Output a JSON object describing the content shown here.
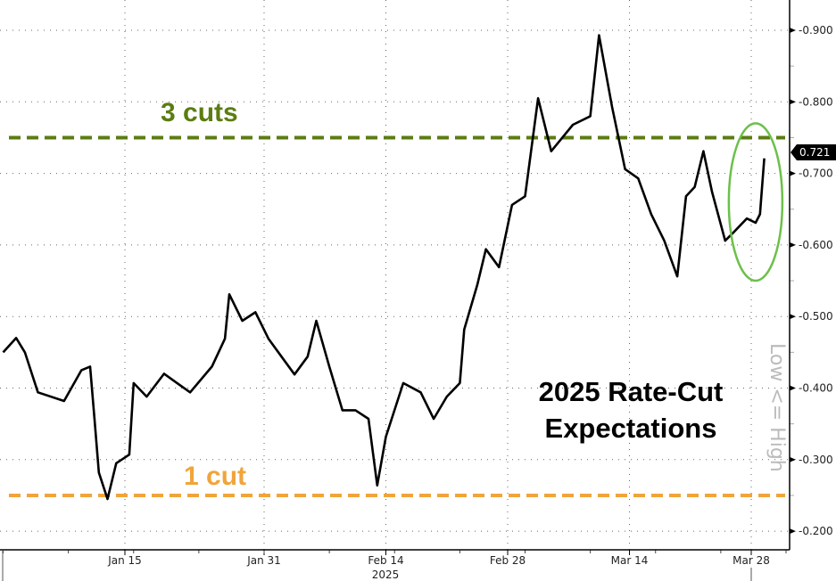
{
  "chart_data": {
    "type": "line",
    "title": "2025 Rate-Cut Expectations",
    "title_lines": [
      "2025 Rate-Cut",
      "Expectations"
    ],
    "ylabel": "Low <= High",
    "xlabel": "2025",
    "ylim": [
      0.18,
      0.93
    ],
    "xlim": [
      "2025-01-01",
      "2025-04-01"
    ],
    "y_axis_side": "right",
    "y_ticks": [
      0.2,
      0.3,
      0.4,
      0.5,
      0.6,
      0.7,
      0.8,
      0.9
    ],
    "y_tick_labels": [
      "0.200",
      "0.300",
      "0.400",
      "0.500",
      "0.600",
      "0.700",
      "0.800",
      "0.900"
    ],
    "x_ticks": [
      "2025-01-15",
      "2025-01-31",
      "2025-02-14",
      "2025-02-28",
      "2025-03-14",
      "2025-03-28"
    ],
    "x_tick_labels": [
      "Jan 15",
      "Jan 31",
      "Feb 14",
      "Feb 28",
      "Mar 14",
      "Mar 28"
    ],
    "grid": true,
    "last_value_label": "0.721",
    "line_color": "#000000",
    "series": [
      {
        "x": [
          "2025-01-01T00:00",
          "2025-01-02T12:00",
          "2025-01-03T12:00",
          "2025-01-05T00:00",
          "2025-01-08T00:00",
          "2025-01-10T00:00",
          "2025-01-11T00:00",
          "2025-01-11T12:00",
          "2025-01-12T00:00",
          "2025-01-13T00:00",
          "2025-01-14T00:00",
          "2025-01-15T12:00",
          "2025-01-16T00:00",
          "2025-01-17T12:00",
          "2025-01-19T12:00",
          "2025-01-21T00:00",
          "2025-01-22T12:00",
          "2025-01-25T00:00",
          "2025-01-26T12:00",
          "2025-01-27T00:00",
          "2025-01-28T12:00",
          "2025-01-30T00:00",
          "2025-01-31T12:00",
          "2025-02-02T00:00",
          "2025-02-03T12:00",
          "2025-02-05T00:00",
          "2025-02-06T00:00",
          "2025-02-07T12:00",
          "2025-02-09T00:00",
          "2025-02-10T12:00",
          "2025-02-12T00:00",
          "2025-02-13T00:00",
          "2025-02-14T00:00",
          "2025-02-16T00:00",
          "2025-02-18T00:00",
          "2025-02-19T12:00",
          "2025-02-21T00:00",
          "2025-02-22T12:00",
          "2025-02-23T00:00",
          "2025-02-24T12:00",
          "2025-02-25T12:00",
          "2025-02-27T00:00",
          "2025-02-28T12:00",
          "2025-03-02T00:00",
          "2025-03-03T12:00",
          "2025-03-05T00:00",
          "2025-03-07T12:00",
          "2025-03-09T12:00",
          "2025-03-10T12:00",
          "2025-03-12T00:00",
          "2025-03-13T12:00",
          "2025-03-15T00:00",
          "2025-03-16T12:00",
          "2025-03-18T00:00",
          "2025-03-19T12:00",
          "2025-03-20T12:00",
          "2025-03-21T12:00",
          "2025-03-22T12:00",
          "2025-03-23T12:00",
          "2025-03-25T00:00",
          "2025-03-26T00:00",
          "2025-03-27T12:00",
          "2025-03-28T12:00",
          "2025-03-29T00:00",
          "2025-03-29T12:00"
        ],
        "values": [
          0.45,
          0.47,
          0.45,
          0.394,
          0.382,
          0.425,
          0.43,
          0.357,
          0.282,
          0.245,
          0.295,
          0.307,
          0.407,
          0.388,
          0.42,
          0.407,
          0.394,
          0.43,
          0.469,
          0.531,
          0.494,
          0.506,
          0.469,
          0.444,
          0.419,
          0.444,
          0.494,
          0.43,
          0.369,
          0.369,
          0.357,
          0.264,
          0.332,
          0.407,
          0.394,
          0.357,
          0.388,
          0.407,
          0.482,
          0.544,
          0.594,
          0.569,
          0.656,
          0.668,
          0.805,
          0.731,
          0.768,
          0.78,
          0.893,
          0.793,
          0.706,
          0.693,
          0.643,
          0.606,
          0.556,
          0.668,
          0.681,
          0.731,
          0.674,
          0.606,
          0.618,
          0.637,
          0.631,
          0.643,
          0.721
        ]
      }
    ],
    "reference_lines": [
      {
        "label": "3 cuts",
        "value": 0.75,
        "color": "#5b7d12",
        "style": "dashed"
      },
      {
        "label": "1 cut",
        "value": 0.25,
        "color": "#f0a53a",
        "style": "dashed"
      }
    ],
    "highlight_ellipse": {
      "color": "#6cc04a",
      "x": "2025-03-28T12:00",
      "y": [
        0.55,
        0.77
      ]
    }
  }
}
